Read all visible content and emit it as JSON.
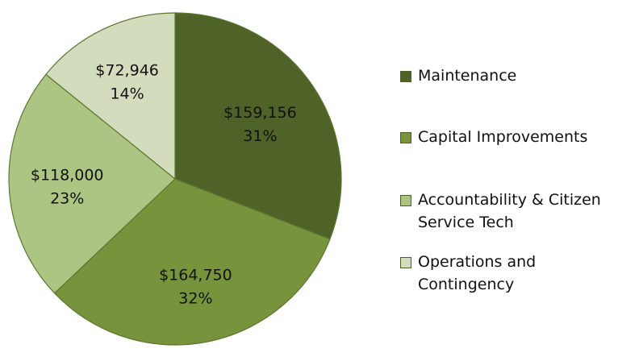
{
  "chart_data": {
    "type": "pie",
    "slices": [
      {
        "label": "Maintenance",
        "value": 159156,
        "value_text": "$159,156",
        "percent_text": "31%",
        "color": "#4f6228"
      },
      {
        "label": "Capital Improvements",
        "value": 164750,
        "value_text": "$164,750",
        "percent_text": "32%",
        "color": "#77933c"
      },
      {
        "label": "Accountability & Citizen Service Tech",
        "value": 118000,
        "value_text": "$118,000",
        "percent_text": "23%",
        "color": "#adc582"
      },
      {
        "label": "Operations and Contingency",
        "value": 72946,
        "value_text": "$72,946",
        "percent_text": "14%",
        "color": "#d3ddbd"
      }
    ],
    "start_angle": "12 o'clock",
    "direction": "clockwise",
    "slice_border_color": "#5f7530",
    "legend_placement": "right"
  }
}
